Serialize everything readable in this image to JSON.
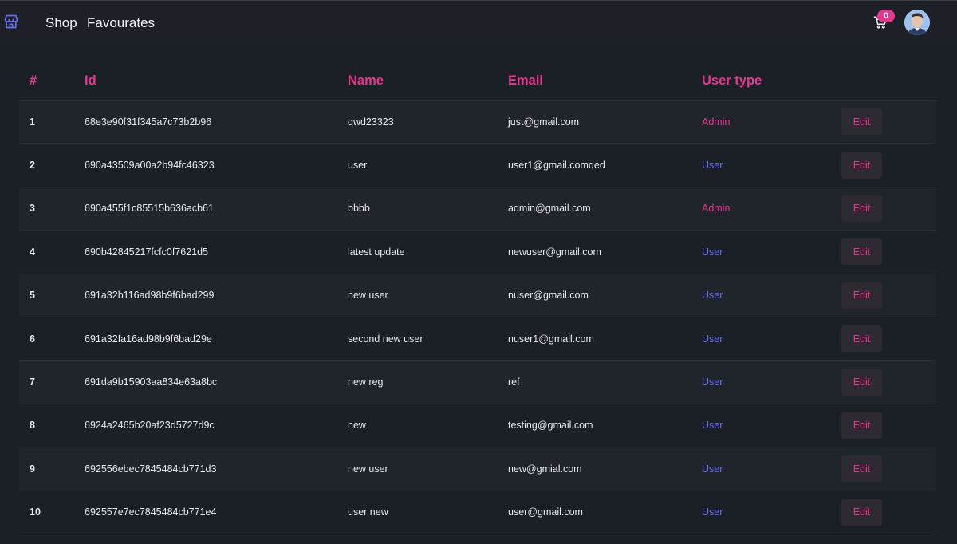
{
  "navbar": {
    "logo_icon": "store-icon",
    "links": [
      "Shop",
      "Favourates"
    ],
    "cart_icon": "cart-icon",
    "cart_count": "0",
    "avatar_icon": "user-avatar"
  },
  "colors": {
    "accent": "#e8368f",
    "user_type": "#6c6cf0",
    "background": "#1b1f26"
  },
  "table": {
    "headers": [
      "#",
      "Id",
      "Name",
      "Email",
      "User type"
    ],
    "edit_label": "Edit",
    "rows": [
      {
        "num": "1",
        "id": "68e3e90f31f345a7c73b2b96",
        "name": "qwd23323",
        "email": "just@gmail.com",
        "type": "Admin"
      },
      {
        "num": "2",
        "id": "690a43509a00a2b94fc46323",
        "name": "user",
        "email": "user1@gmail.comqed",
        "type": "User"
      },
      {
        "num": "3",
        "id": "690a455f1c85515b636acb61",
        "name": "bbbb",
        "email": "admin@gmail.com",
        "type": "Admin"
      },
      {
        "num": "4",
        "id": "690b42845217fcfc0f7621d5",
        "name": "latest update",
        "email": "newuser@gmail.com",
        "type": "User"
      },
      {
        "num": "5",
        "id": "691a32b116ad98b9f6bad299",
        "name": "new user",
        "email": "nuser@gmail.com",
        "type": "User"
      },
      {
        "num": "6",
        "id": "691a32fa16ad98b9f6bad29e",
        "name": "second new user",
        "email": "nuser1@gmail.com",
        "type": "User"
      },
      {
        "num": "7",
        "id": "691da9b15903aa834e63a8bc",
        "name": "new reg",
        "email": "ref",
        "type": "User"
      },
      {
        "num": "8",
        "id": "6924a2465b20af23d5727d9c",
        "name": "new",
        "email": "testing@gmail.com",
        "type": "User"
      },
      {
        "num": "9",
        "id": "692556ebec7845484cb771d3",
        "name": "new user",
        "email": "new@gmial.com",
        "type": "User"
      },
      {
        "num": "10",
        "id": "692557e7ec7845484cb771e4",
        "name": "user new",
        "email": "user@gmail.com",
        "type": "User"
      }
    ]
  }
}
